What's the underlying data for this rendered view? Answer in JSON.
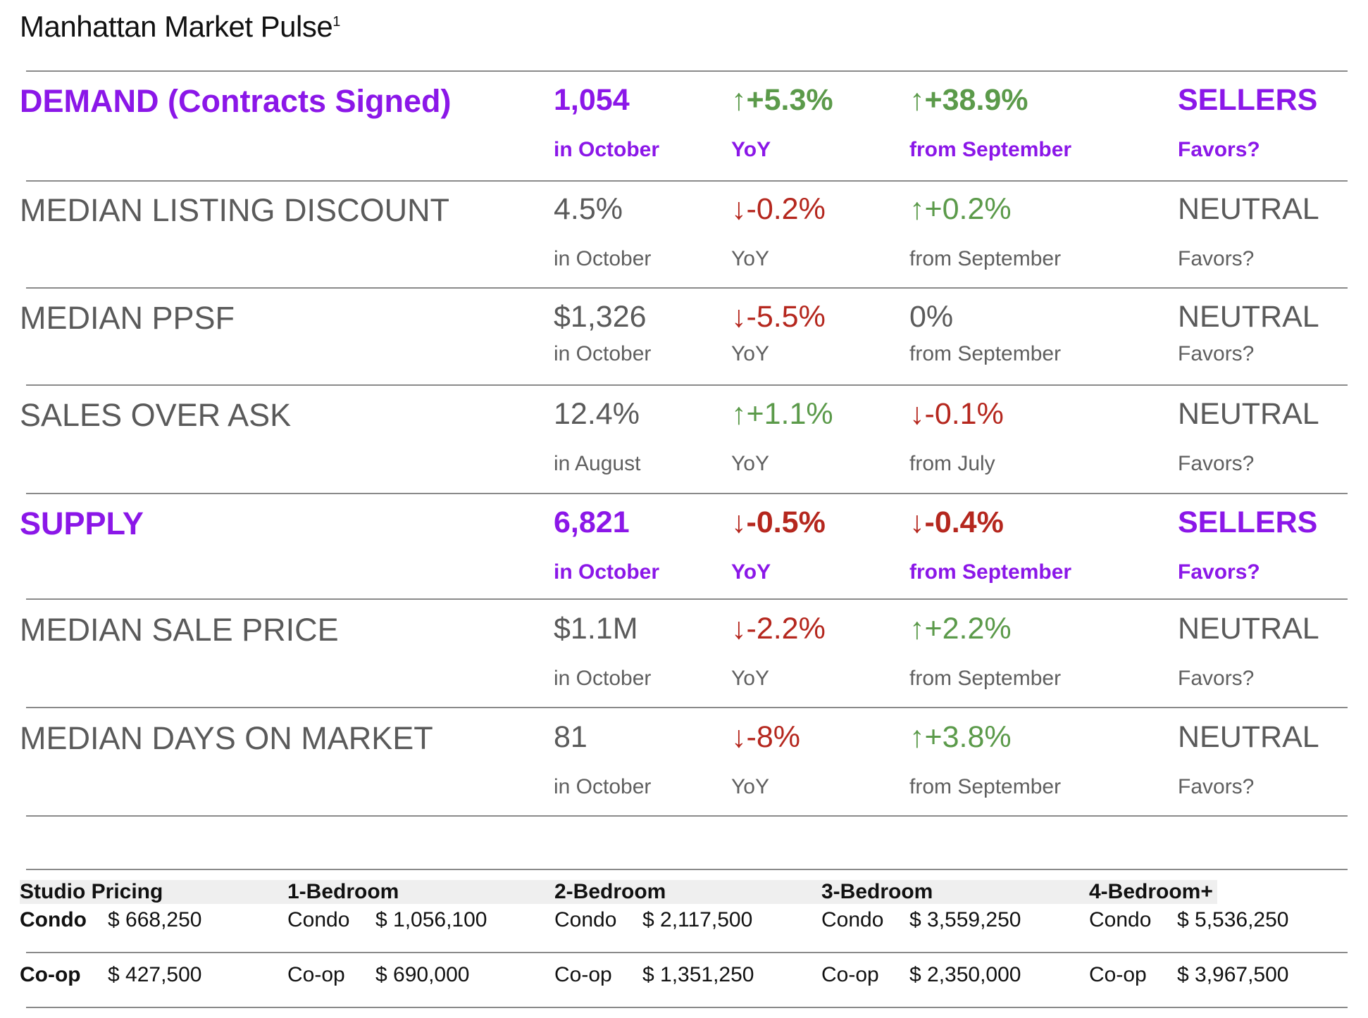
{
  "title": "Manhattan Market Pulse",
  "title_sup": "1",
  "metrics": [
    {
      "label": "DEMAND (Contracts Signed)",
      "value": "1,054",
      "period": "in October",
      "yoy": "+5.3%",
      "yoy_dir": "up",
      "yoy_label": "YoY",
      "mom": "+38.9%",
      "mom_dir": "up",
      "mom_label": "from September",
      "favor": "SELLERS",
      "favor_label": "Favors?",
      "highlight": true
    },
    {
      "label": "MEDIAN LISTING DISCOUNT",
      "value": "4.5%",
      "period": "in October",
      "yoy": "-0.2%",
      "yoy_dir": "down",
      "yoy_label": "YoY",
      "mom": "+0.2%",
      "mom_dir": "up",
      "mom_label": "from September",
      "favor": "NEUTRAL",
      "favor_label": "Favors?",
      "highlight": false
    },
    {
      "label": "MEDIAN PPSF",
      "value": "$1,326",
      "period": "in October",
      "yoy": "-5.5%",
      "yoy_dir": "down",
      "yoy_label": "YoY",
      "mom": "0%",
      "mom_dir": "none",
      "mom_label": "from September",
      "favor": "NEUTRAL",
      "favor_label": "Favors?",
      "highlight": false
    },
    {
      "label": "SALES OVER ASK",
      "value": "12.4%",
      "period": "in August",
      "yoy": "+1.1%",
      "yoy_dir": "up",
      "yoy_label": "YoY",
      "mom": "-0.1%",
      "mom_dir": "down",
      "mom_label": "from July",
      "favor": "NEUTRAL",
      "favor_label": "Favors?",
      "highlight": false
    },
    {
      "label": "SUPPLY",
      "value": "6,821",
      "period": "in October",
      "yoy": "-0.5%",
      "yoy_dir": "down",
      "yoy_label": "YoY",
      "mom": "-0.4%",
      "mom_dir": "down",
      "mom_label": "from September",
      "favor": "SELLERS",
      "favor_label": "Favors?",
      "highlight": true
    },
    {
      "label": "MEDIAN SALE PRICE",
      "value": "$1.1M",
      "period": "in October",
      "yoy": "-2.2%",
      "yoy_dir": "down",
      "yoy_label": "YoY",
      "mom": "+2.2%",
      "mom_dir": "up",
      "mom_label": "from September",
      "favor": "NEUTRAL",
      "favor_label": "Favors?",
      "highlight": false
    },
    {
      "label": "MEDIAN DAYS ON MARKET",
      "value": "81",
      "period": "in October",
      "yoy": "-8%",
      "yoy_dir": "down",
      "yoy_label": "YoY",
      "mom": "+3.8%",
      "mom_dir": "up",
      "mom_label": "from September",
      "favor": "NEUTRAL",
      "favor_label": "Favors?",
      "highlight": false
    }
  ],
  "arrows": {
    "up": "↑",
    "down": "↓"
  },
  "colors": {
    "accent": "#8b17e8",
    "up": "#5b9a4a",
    "down": "#b5271e",
    "text_gray": "#5a5a5a"
  },
  "pricing": {
    "headers": [
      "Studio Pricing",
      "1-Bedroom",
      "2-Bedroom",
      "3-Bedroom",
      "4-Bedroom+"
    ],
    "rows": [
      {
        "type_label": "Condo",
        "values": [
          "$ 668,250",
          "$ 1,056,100",
          "$ 2,117,500",
          "$ 3,559,250",
          "$ 5,536,250"
        ]
      },
      {
        "type_label": "Co-op",
        "values": [
          "$ 427,500",
          "$ 690,000",
          "$ 1,351,250",
          "$ 2,350,000",
          "$ 3,967,500"
        ]
      }
    ]
  }
}
